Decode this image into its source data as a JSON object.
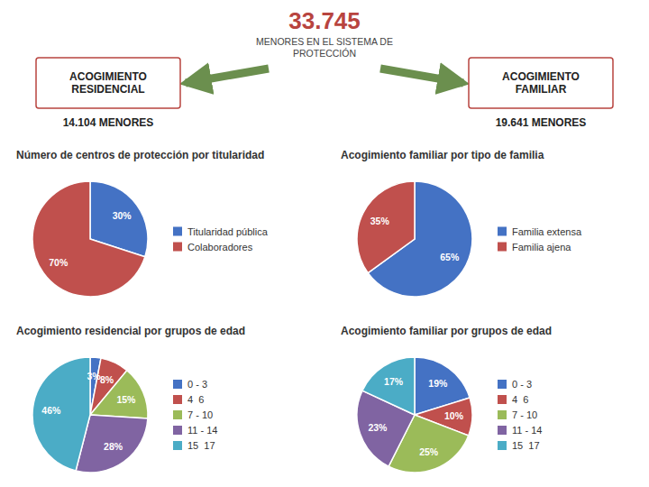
{
  "title": "33.745",
  "subtitle": "MENORES EN EL SISTEMA DE\nPROTECCIÓN",
  "annotations": [
    "ACOGIMIENTO\nRESIDENCIAL",
    "14.104 MENORES",
    "ACOGIMIENTO\nFAMILIAR",
    "19.641 MENORES"
  ],
  "chart_data": [
    {
      "type": "pie",
      "title": "Número de centros de protección por titularidad",
      "categories": [
        "Titularidad pública",
        "Colaboradores"
      ],
      "values": [
        30,
        70
      ],
      "value_labels": [
        "30%",
        "70%"
      ],
      "colors": [
        "#4472C4",
        "#C0504D"
      ],
      "data_labels": true,
      "legend": "right"
    },
    {
      "type": "pie",
      "title": "Acogimiento familiar por tipo de familia",
      "categories": [
        "Familia extensa",
        "Familia ajena"
      ],
      "values": [
        65,
        35
      ],
      "value_labels": [
        "65%",
        "35%"
      ],
      "colors": [
        "#4472C4",
        "#C0504D"
      ],
      "data_labels": true,
      "legend": "right"
    },
    {
      "type": "pie",
      "title": "Acogimiento residencial por grupos de edad",
      "categories": [
        "0 - 3",
        "4  6",
        "7 - 10",
        "11 - 14",
        "15  17"
      ],
      "values": [
        3,
        8,
        15,
        28,
        46
      ],
      "value_labels": [
        "3%",
        "8%",
        "15%",
        "28%",
        "46%"
      ],
      "colors": [
        "#4472C4",
        "#C0504D",
        "#9BBB59",
        "#8064A2",
        "#4BACC6"
      ],
      "data_labels": true,
      "legend": "right"
    },
    {
      "type": "pie",
      "title": "Acogimiento familiar por grupos de edad",
      "categories": [
        "0 - 3",
        "4  6",
        "7 - 10",
        "11 - 14",
        "15  17"
      ],
      "values": [
        19,
        10,
        25,
        23,
        17
      ],
      "value_labels": [
        "19%",
        "10%",
        "25%",
        "23%",
        "17%"
      ],
      "colors": [
        "#4472C4",
        "#C0504D",
        "#9BBB59",
        "#8064A2",
        "#4BACC6"
      ],
      "data_labels": true,
      "legend": "right"
    }
  ]
}
